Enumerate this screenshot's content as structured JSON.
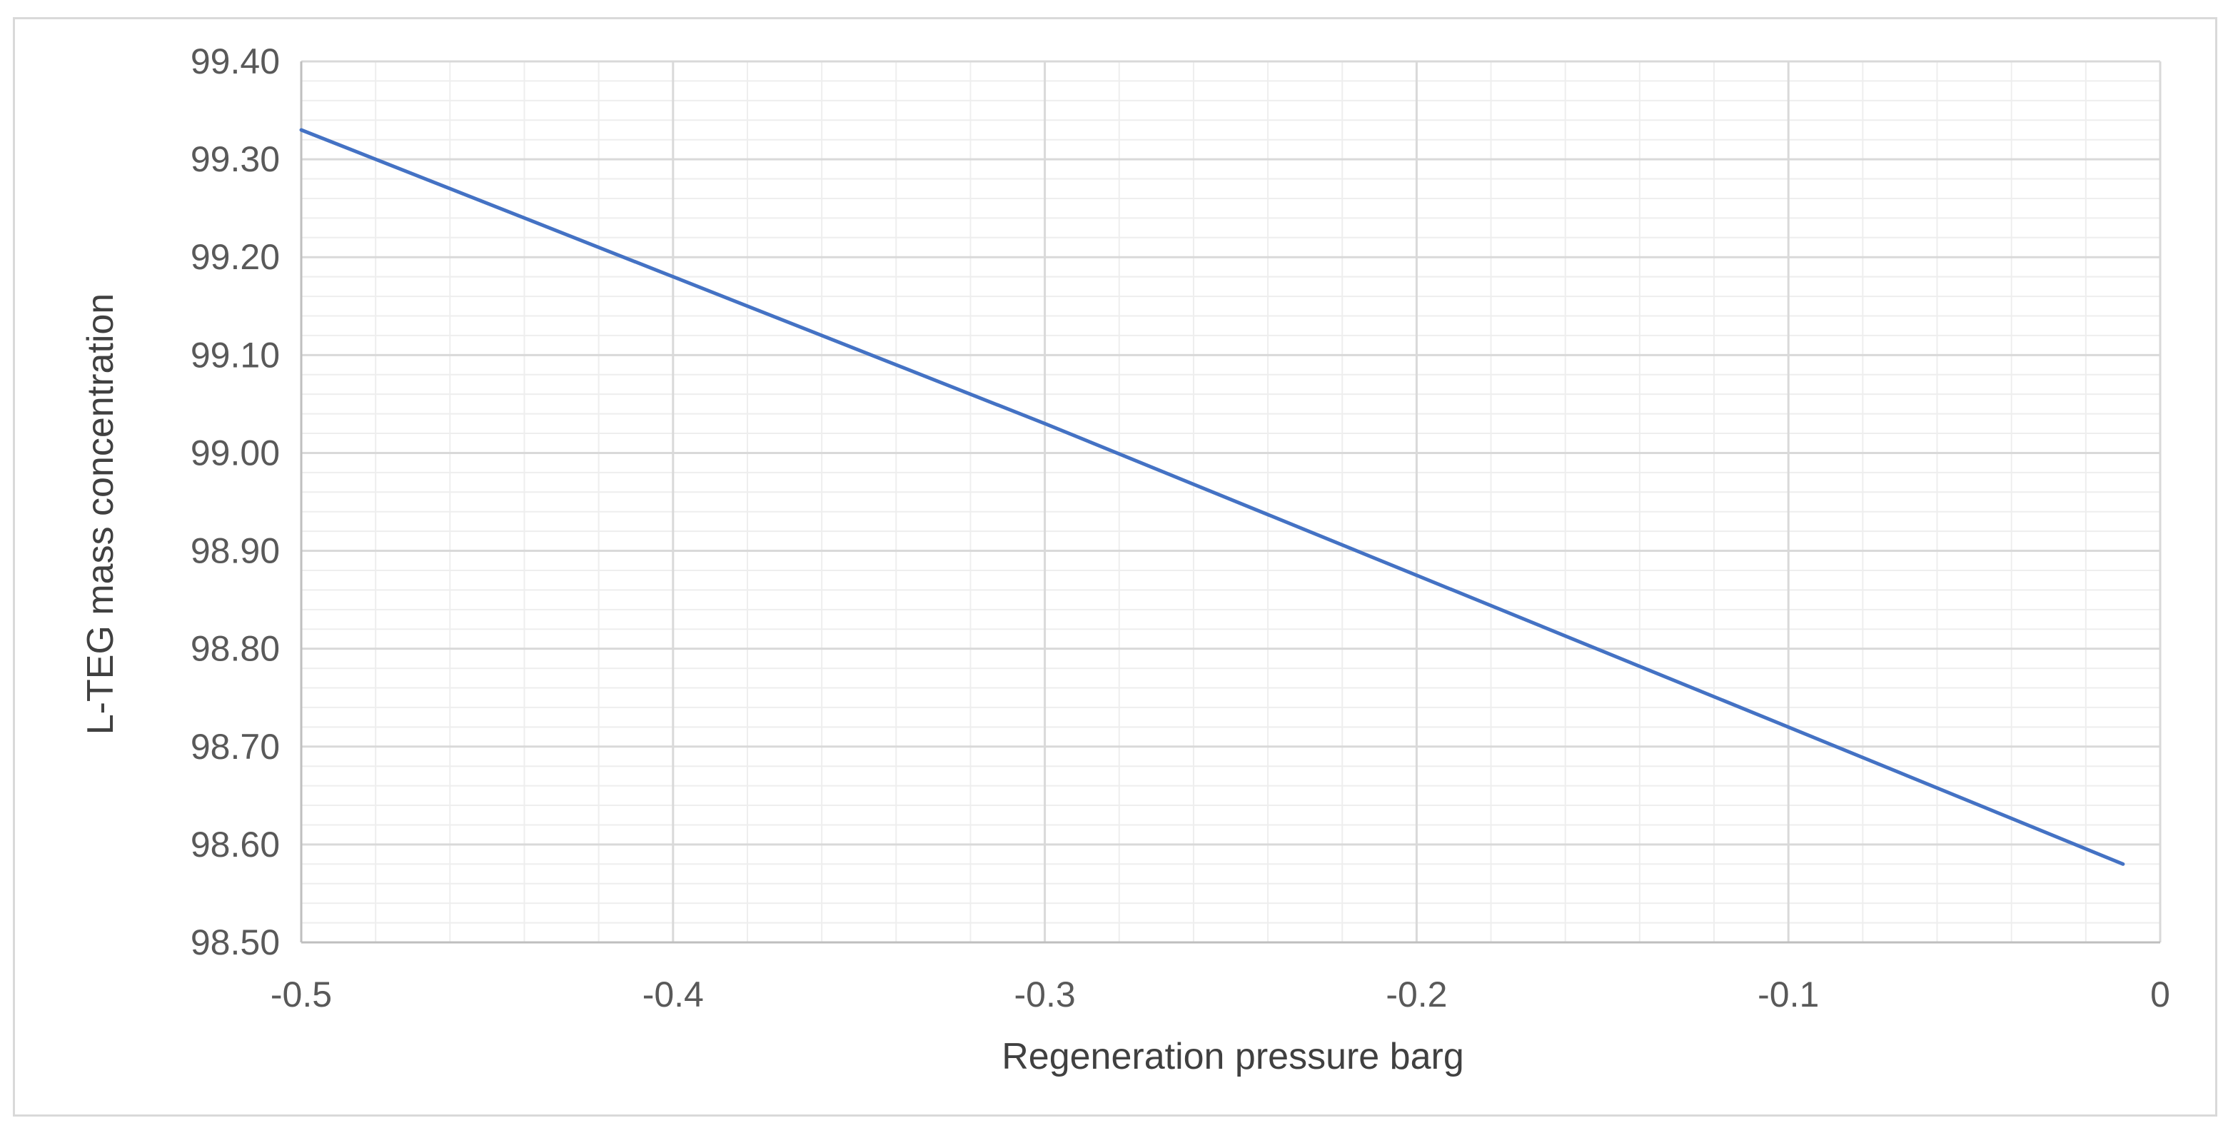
{
  "chart_data": {
    "type": "line",
    "title": "",
    "xlabel": "Regeneration pressure barg",
    "ylabel": "L-TEG mass concentration",
    "xlim": [
      -0.5,
      0
    ],
    "ylim": [
      98.5,
      99.4
    ],
    "x_ticks": [
      -0.5,
      -0.4,
      -0.3,
      -0.2,
      -0.1,
      0
    ],
    "x_tick_labels": [
      "-0.5",
      "-0.4",
      "-0.3",
      "-0.2",
      "-0.1",
      "0"
    ],
    "y_ticks": [
      98.5,
      98.6,
      98.7,
      98.8,
      98.9,
      99.0,
      99.1,
      99.2,
      99.3,
      99.4
    ],
    "y_tick_labels": [
      "98.50",
      "98.60",
      "98.70",
      "98.80",
      "98.90",
      "99.00",
      "99.10",
      "99.20",
      "99.30",
      "99.40"
    ],
    "x_minor_step": 0.02,
    "y_minor_step": 0.02,
    "grid": true,
    "legend": "none",
    "series": [
      {
        "name": "L-TEG mass concentration",
        "color": "#4472c4",
        "x": [
          -0.5,
          -0.4,
          -0.3,
          -0.2,
          -0.1,
          -0.01
        ],
        "values": [
          99.33,
          99.18,
          99.03,
          98.875,
          98.72,
          98.58
        ]
      }
    ],
    "colors": {
      "major_grid": "#d9d9d9",
      "minor_grid": "#eeeeee",
      "axis": "#bfbfbf",
      "frame": "#d9d9d9"
    }
  }
}
